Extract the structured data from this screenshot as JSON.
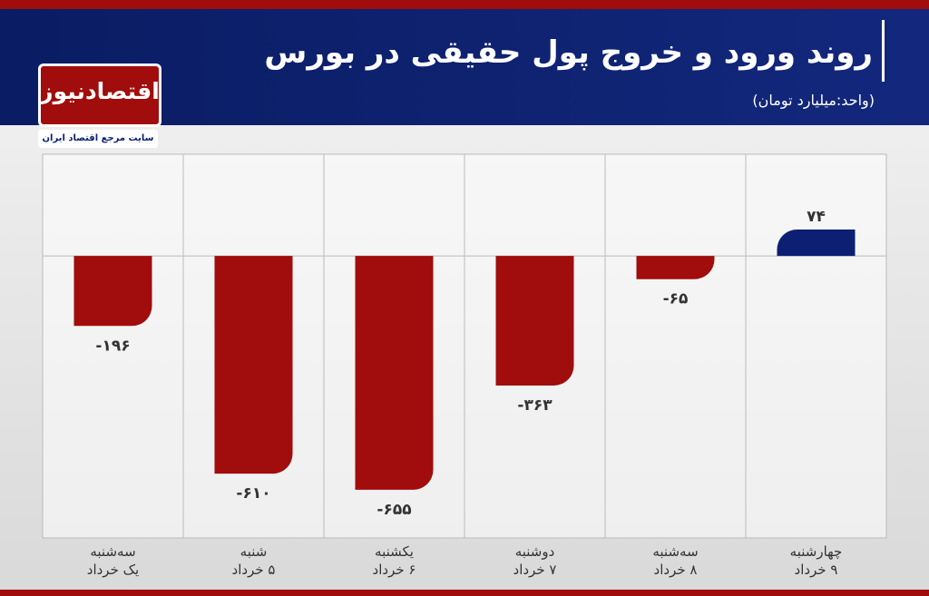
{
  "chart_data": {
    "type": "bar",
    "title": "روند ورود و خروج پول حقیقی در بورس",
    "subtitle": "(واحد:میلیارد تومان)",
    "categories": [
      "سه‌شنبه\nیک خرداد",
      "شنبه\n۵ خرداد",
      "یکشنبه\n۶ خرداد",
      "دوشنبه\n۷ خرداد",
      "سه‌شنبه\n۸ خرداد",
      "چهارشنبه\n۹ خرداد"
    ],
    "values": [
      -196,
      -610,
      -655,
      -363,
      -65,
      74
    ],
    "value_labels": [
      "-۱۹۶",
      "-۶۱۰",
      "-۶۵۵",
      "-۳۶۳",
      "-۶۵",
      "۷۴"
    ],
    "colors": {
      "negative": "#a10c0c",
      "positive": "#0c1f72"
    },
    "ylim": [
      -790,
      285
    ]
  },
  "logo": {
    "name": "اقتصادنیوز",
    "tagline": "سایت مرجع اقتصاد ایران"
  }
}
